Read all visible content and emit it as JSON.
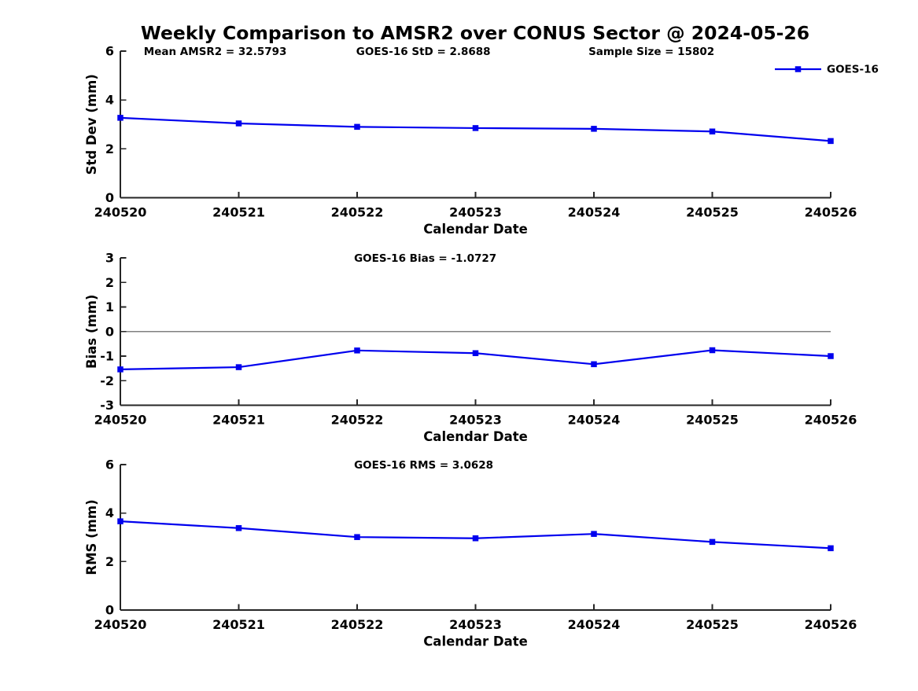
{
  "title": "Weekly Comparison to AMSR2 over CONUS Sector @ 2024-05-26",
  "colors": {
    "line": "#0000EE",
    "axis": "#262626",
    "text": "#000000",
    "zero_line": "#808080",
    "background": "#FFFFFF"
  },
  "chart_data": [
    {
      "type": "line",
      "ylabel": "Std Dev (mm)",
      "xlabel": "Calendar Date",
      "categories": [
        "240520",
        "240521",
        "240522",
        "240523",
        "240524",
        "240525",
        "240526"
      ],
      "series": [
        {
          "name": "GOES-16",
          "values": [
            3.27,
            3.04,
            2.9,
            2.85,
            2.82,
            2.71,
            2.32
          ]
        }
      ],
      "ylim": [
        0,
        6
      ],
      "yticks": [
        0,
        2,
        4,
        6
      ],
      "grid": false,
      "annotations": [
        {
          "text": "Mean AMSR2 = 32.5793",
          "xfrac": 0.033
        },
        {
          "text": "GOES-16 StD = 2.8688",
          "xfrac": 0.332
        },
        {
          "text": "Sample Size = 15802",
          "xfrac": 0.659
        }
      ],
      "legend": {
        "label": "GOES-16",
        "position": "top-right"
      }
    },
    {
      "type": "line",
      "ylabel": "Bias (mm)",
      "xlabel": "Calendar Date",
      "categories": [
        "240520",
        "240521",
        "240522",
        "240523",
        "240524",
        "240525",
        "240526"
      ],
      "series": [
        {
          "name": "GOES-16",
          "values": [
            -1.54,
            -1.45,
            -0.77,
            -0.88,
            -1.33,
            -0.76,
            -1.0
          ]
        }
      ],
      "ylim": [
        -3,
        3
      ],
      "yticks": [
        -3,
        -2,
        -1,
        0,
        1,
        2,
        3
      ],
      "grid": false,
      "zero_line": true,
      "annotations": [
        {
          "text": "GOES-16 Bias  = -1.0727",
          "xfrac": 0.329
        }
      ]
    },
    {
      "type": "line",
      "ylabel": "RMS (mm)",
      "xlabel": "Calendar Date",
      "categories": [
        "240520",
        "240521",
        "240522",
        "240523",
        "240524",
        "240525",
        "240526"
      ],
      "series": [
        {
          "name": "GOES-16",
          "values": [
            3.66,
            3.38,
            3.01,
            2.96,
            3.14,
            2.81,
            2.55
          ]
        }
      ],
      "ylim": [
        0,
        6
      ],
      "yticks": [
        0,
        2,
        4,
        6
      ],
      "grid": false,
      "annotations": [
        {
          "text": "GOES-16 RMS = 3.0628",
          "xfrac": 0.329
        }
      ]
    }
  ]
}
